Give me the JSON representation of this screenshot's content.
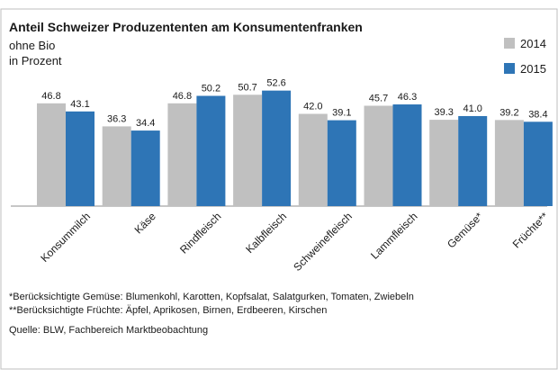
{
  "chart_data": {
    "type": "bar",
    "title": "Anteil Schweizer Produzententen am Konsumentenfranken",
    "subtitle_lines": [
      "ohne Bio",
      "in Prozent"
    ],
    "categories": [
      "Konsummilch",
      "Käse",
      "Rindfleisch",
      "Kalbfleisch",
      "Schweinefleisch",
      "Lammfleisch",
      "Gemüse*",
      "Früchte**"
    ],
    "series": [
      {
        "name": "2014",
        "color": "#c0c0c0",
        "values": [
          46.8,
          36.3,
          46.8,
          50.7,
          42.0,
          45.7,
          39.3,
          39.2
        ]
      },
      {
        "name": "2015",
        "color": "#2e75b6",
        "values": [
          43.1,
          34.4,
          50.2,
          52.6,
          39.1,
          46.3,
          41.0,
          38.4
        ]
      }
    ],
    "data_labels": true,
    "ylim": [
      0,
      60
    ],
    "grid": false,
    "legend_position": "top-right"
  },
  "footnotes": [
    "*Berücksichtigte Gemüse: Blumenkohl, Karotten, Kopfsalat, Salatgurken, Tomaten, Zwiebeln",
    "**Berücksichtigte Früchte: Äpfel, Aprikosen, Birnen, Erdbeeren, Kirschen"
  ],
  "source": "Quelle: BLW, Fachbereich Marktbeobachtung",
  "colors": {
    "frame": "#bfbfbf",
    "axis": "#8c8c8c",
    "text": "#1a1a1a"
  }
}
